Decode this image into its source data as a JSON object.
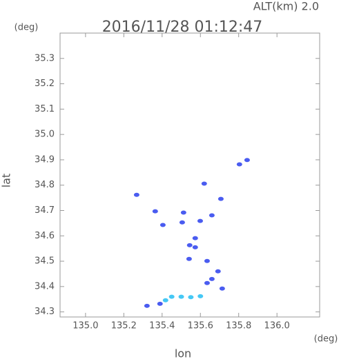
{
  "chart_data": {
    "type": "scatter",
    "title": "2016/11/28 01:12:47",
    "subtitle": "ALT(km) 2.0",
    "y_unit": "(deg)",
    "x_unit": "(deg)",
    "xlabel": "lon",
    "ylabel": "lat",
    "xlim": [
      134.867,
      136.223
    ],
    "ylim": [
      34.28,
      35.4
    ],
    "xticks": [
      {
        "value": 135,
        "label": "135.0"
      },
      135.2,
      135.4,
      135.6,
      135.8,
      {
        "value": 136,
        "label": "136.0"
      }
    ],
    "yticks": [
      34.3,
      34.4,
      34.5,
      34.6,
      34.7,
      34.8,
      34.9,
      {
        "value": 35,
        "label": "35.0"
      },
      35.1,
      35.2,
      35.3
    ],
    "series": [
      {
        "color": "#4a5cf0",
        "x": [
          135.844,
          135.804,
          135.267,
          135.62,
          135.707,
          135.364,
          135.512,
          135.505,
          135.599,
          135.66,
          135.404,
          135.573,
          135.544,
          135.573,
          135.541,
          135.635,
          135.692,
          135.66,
          135.635,
          135.714,
          135.389,
          135.321
        ],
        "values": [
          34.899,
          34.882,
          34.762,
          34.806,
          34.746,
          34.697,
          34.692,
          34.653,
          34.659,
          34.681,
          34.643,
          34.591,
          34.563,
          34.555,
          34.509,
          34.501,
          34.46,
          34.43,
          34.414,
          34.392,
          34.332,
          34.324
        ]
      },
      {
        "color": "#45c8f5",
        "x": [
          135.418,
          135.45,
          135.5,
          135.55,
          135.6
        ],
        "values": [
          34.346,
          34.36,
          34.36,
          34.358,
          34.362
        ]
      }
    ]
  }
}
